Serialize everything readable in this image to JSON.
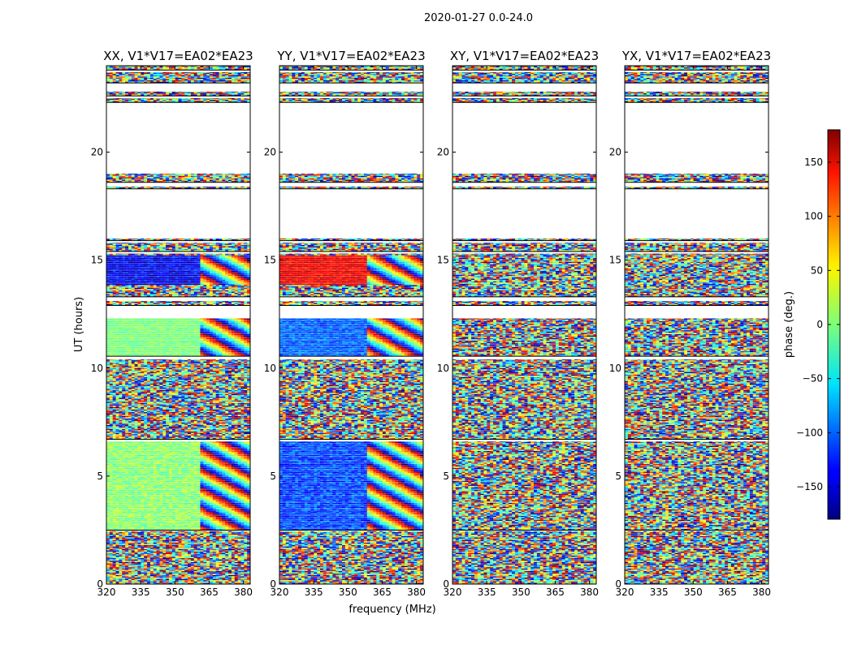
{
  "chart_data": {
    "type": "heatmap",
    "title": "2020-01-27 0.0-24.0",
    "xlabel": "frequency (MHz)",
    "ylabel": "UT (hours)",
    "xlim": [
      320,
      383
    ],
    "ylim": [
      0,
      24
    ],
    "x_ticks": [
      320,
      335,
      350,
      365,
      380
    ],
    "y_ticks": [
      0,
      5,
      10,
      15,
      20
    ],
    "colorbar": {
      "label": "phase (deg.)",
      "range": [
        -180,
        180
      ],
      "ticks": [
        -150,
        -100,
        -50,
        0,
        50,
        100,
        150
      ],
      "tick_labels": [
        "−150",
        "−100",
        "−50",
        "0",
        "50",
        "100",
        "150"
      ],
      "colormap": "jet"
    },
    "panels": [
      {
        "title": "XX, V1*V17=EA02*EA23",
        "blocks": [
          {
            "t0": 2.45,
            "t1": 6.6,
            "f_split": 360,
            "low_phase": 5,
            "low_jitter": 25,
            "pattern": "stripes"
          },
          {
            "t0": 10.4,
            "t1": 12.3,
            "f_split": 360,
            "low_phase": 0,
            "low_jitter": 15,
            "pattern": "stripes"
          },
          {
            "t0": 13.8,
            "t1": 15.2,
            "f_split": 360,
            "low_phase": -140,
            "low_jitter": 30,
            "pattern": "stripes"
          }
        ]
      },
      {
        "title": "YY, V1*V17=EA02*EA23",
        "blocks": [
          {
            "t0": 2.45,
            "t1": 6.6,
            "f_split": 358,
            "low_phase": -110,
            "low_jitter": 30,
            "pattern": "stripes"
          },
          {
            "t0": 10.4,
            "t1": 12.3,
            "f_split": 358,
            "low_phase": -100,
            "low_jitter": 25,
            "pattern": "stripes"
          },
          {
            "t0": 13.8,
            "t1": 15.2,
            "f_split": 358,
            "low_phase": 140,
            "low_jitter": 20,
            "pattern": "stripes"
          }
        ]
      },
      {
        "title": "XY, V1*V17=EA02*EA23",
        "blocks": []
      },
      {
        "title": "YX, V1*V17=EA02*EA23",
        "blocks": []
      }
    ],
    "data_segments_hours": [
      [
        0.0,
        2.45
      ],
      [
        2.5,
        6.6
      ],
      [
        6.7,
        10.4
      ],
      [
        10.55,
        12.3
      ],
      [
        12.9,
        13.1
      ],
      [
        13.3,
        15.3
      ],
      [
        15.4,
        15.8
      ],
      [
        15.9,
        16.0
      ],
      [
        18.3,
        18.4
      ],
      [
        18.6,
        19.0
      ],
      [
        22.3,
        22.5
      ],
      [
        22.6,
        22.8
      ],
      [
        23.2,
        23.7
      ],
      [
        23.8,
        24.0
      ]
    ]
  }
}
